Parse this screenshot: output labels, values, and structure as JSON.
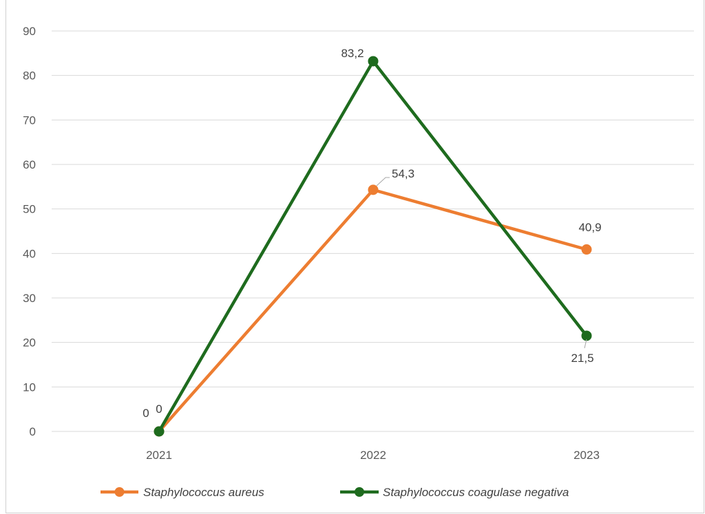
{
  "chart_data": {
    "type": "line",
    "title": "",
    "xlabel": "",
    "ylabel": "",
    "categories": [
      "2021",
      "2022",
      "2023"
    ],
    "ylim": [
      0,
      90
    ],
    "yticks": [
      0,
      10,
      20,
      30,
      40,
      50,
      60,
      70,
      80,
      90
    ],
    "grid": true,
    "legend_position": "bottom",
    "series": [
      {
        "name": "Staphylococcus aureus",
        "values": [
          0,
          54.3,
          40.9
        ],
        "labels": [
          "0",
          "54,3",
          "40,9"
        ],
        "color": "#ED7D31"
      },
      {
        "name": "Staphylococcus coagulase negativa",
        "values": [
          0,
          83.2,
          21.5
        ],
        "labels": [
          "0",
          "83,2",
          "21,5"
        ],
        "color": "#1E6B1E"
      }
    ]
  }
}
